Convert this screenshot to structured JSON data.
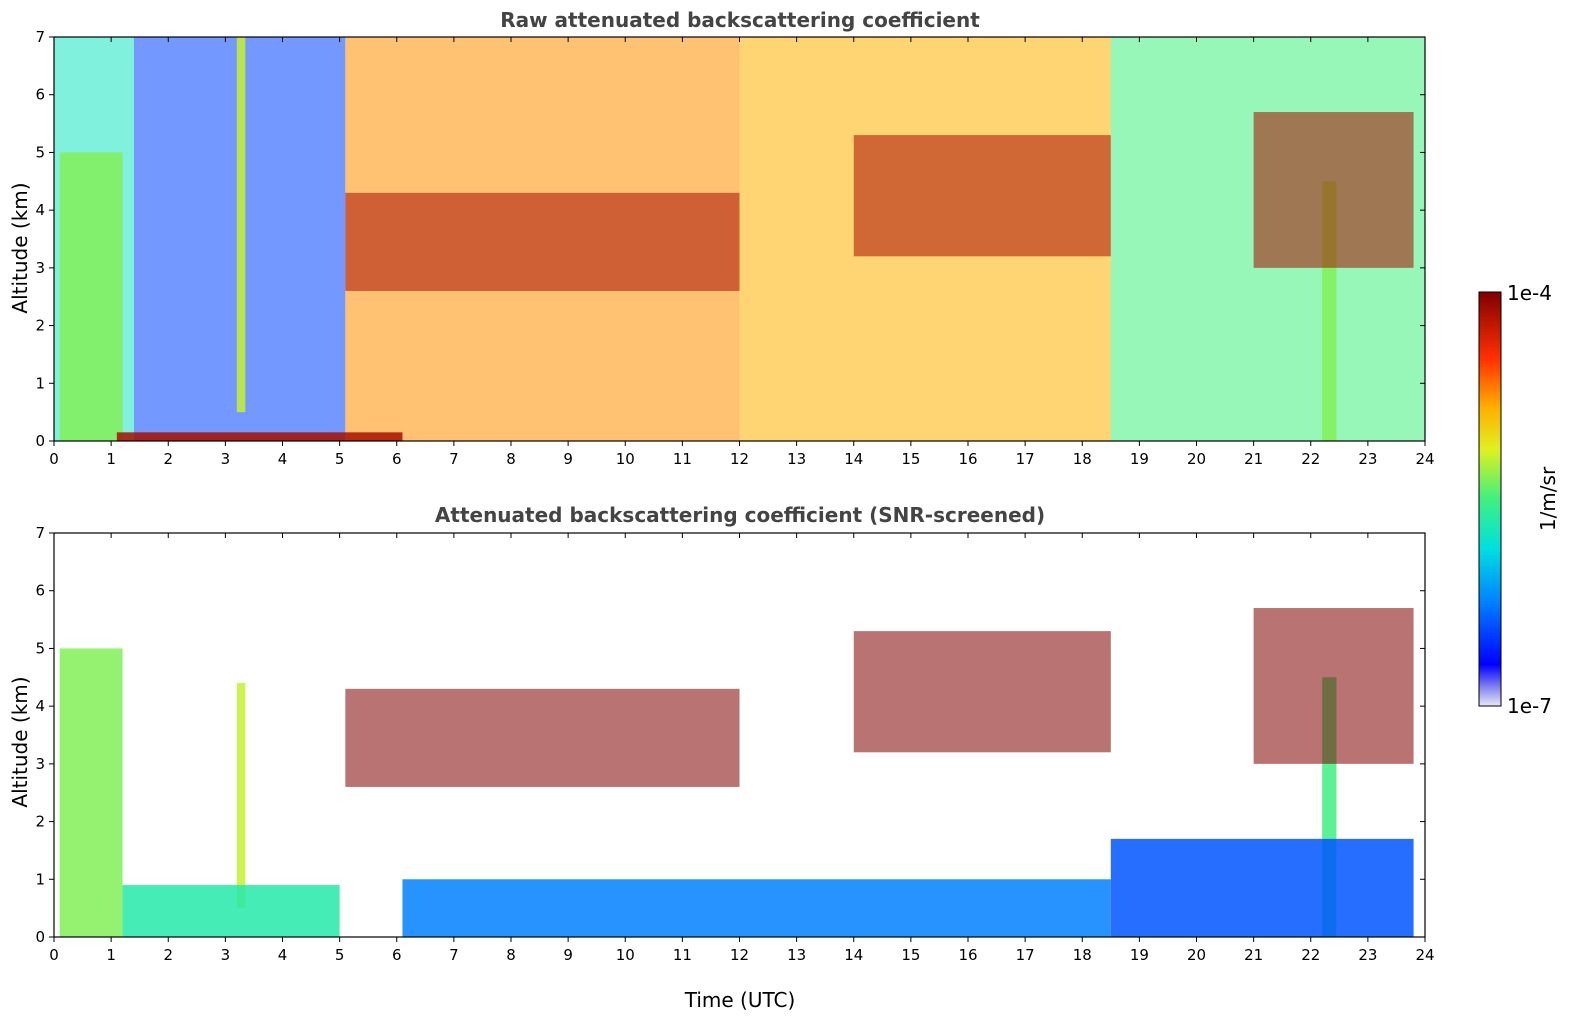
{
  "chart_data": [
    {
      "type": "heatmap",
      "title": "Raw attenuated backscattering coefficient",
      "xlabel": "",
      "ylabel": "Altitude (km)",
      "xlim": [
        0,
        24
      ],
      "ylim": [
        0,
        7
      ],
      "xticks": [
        0,
        1,
        2,
        3,
        4,
        5,
        6,
        7,
        8,
        9,
        10,
        11,
        12,
        13,
        14,
        15,
        16,
        17,
        18,
        19,
        20,
        21,
        22,
        23,
        24
      ],
      "yticks": [
        0,
        1,
        2,
        3,
        4,
        5,
        6,
        7
      ],
      "grid": false,
      "color_scale": "log",
      "features": [
        {
          "kind": "aerosol-column",
          "x": [
            0.1,
            1.2
          ],
          "y": [
            0,
            5.0
          ],
          "level": 0.55
        },
        {
          "kind": "aerosol-column",
          "x": [
            3.2,
            3.35
          ],
          "y": [
            0.5,
            7.0
          ],
          "level": 0.6
        },
        {
          "kind": "aerosol-column",
          "x": [
            22.2,
            22.45
          ],
          "y": [
            0,
            4.5
          ],
          "level": 0.55
        },
        {
          "kind": "surface-layer",
          "x": [
            1.1,
            6.1
          ],
          "y": [
            0,
            0.15
          ],
          "level": 0.95
        },
        {
          "kind": "cloud-layer",
          "x": [
            5.1,
            12.0
          ],
          "y": [
            2.6,
            4.3
          ],
          "level": 0.95
        },
        {
          "kind": "cloud-layer",
          "x": [
            14.0,
            18.5
          ],
          "y": [
            3.2,
            5.3
          ],
          "level": 0.95
        },
        {
          "kind": "cloud-layer",
          "x": [
            21.0,
            23.8
          ],
          "y": [
            3.0,
            5.7
          ],
          "level": 0.95
        }
      ]
    },
    {
      "type": "heatmap",
      "title": "Attenuated backscattering coefficient (SNR-screened)",
      "xlabel": "Time (UTC)",
      "ylabel": "Altitude (km)",
      "xlim": [
        0,
        24
      ],
      "ylim": [
        0,
        7
      ],
      "xticks": [
        0,
        1,
        2,
        3,
        4,
        5,
        6,
        7,
        8,
        9,
        10,
        11,
        12,
        13,
        14,
        15,
        16,
        17,
        18,
        19,
        20,
        21,
        22,
        23,
        24
      ],
      "yticks": [
        0,
        1,
        2,
        3,
        4,
        5,
        6,
        7
      ],
      "grid": false,
      "color_scale": "log",
      "features": [
        {
          "kind": "aerosol-column",
          "x": [
            0.1,
            1.2
          ],
          "y": [
            0,
            5.0
          ],
          "level": 0.55
        },
        {
          "kind": "aerosol-column",
          "x": [
            3.2,
            3.35
          ],
          "y": [
            0.5,
            4.4
          ],
          "level": 0.6
        },
        {
          "kind": "aerosol-column",
          "x": [
            22.2,
            22.45
          ],
          "y": [
            0,
            4.5
          ],
          "level": 0.5
        },
        {
          "kind": "boundary-layer",
          "x": [
            1.2,
            5.0
          ],
          "y": [
            0,
            0.9
          ],
          "level": 0.45
        },
        {
          "kind": "boundary-layer",
          "x": [
            6.1,
            18.5
          ],
          "y": [
            0,
            1.0
          ],
          "level": 0.25
        },
        {
          "kind": "boundary-layer",
          "x": [
            18.5,
            23.8
          ],
          "y": [
            0,
            1.7
          ],
          "level": 0.2
        },
        {
          "kind": "cloud-layer",
          "x": [
            5.1,
            12.0
          ],
          "y": [
            2.6,
            4.3
          ],
          "level": 1.0
        },
        {
          "kind": "cloud-layer",
          "x": [
            14.0,
            18.5
          ],
          "y": [
            3.2,
            5.3
          ],
          "level": 1.0
        },
        {
          "kind": "cloud-layer",
          "x": [
            21.0,
            23.8
          ],
          "y": [
            3.0,
            5.7
          ],
          "level": 1.0
        }
      ]
    }
  ],
  "colorbar": {
    "label": "1/m/sr",
    "max_label": "1e-4",
    "min_label": "1e-7",
    "range": [
      1e-07,
      0.0001
    ],
    "scale": "log",
    "colormap": "jet"
  }
}
